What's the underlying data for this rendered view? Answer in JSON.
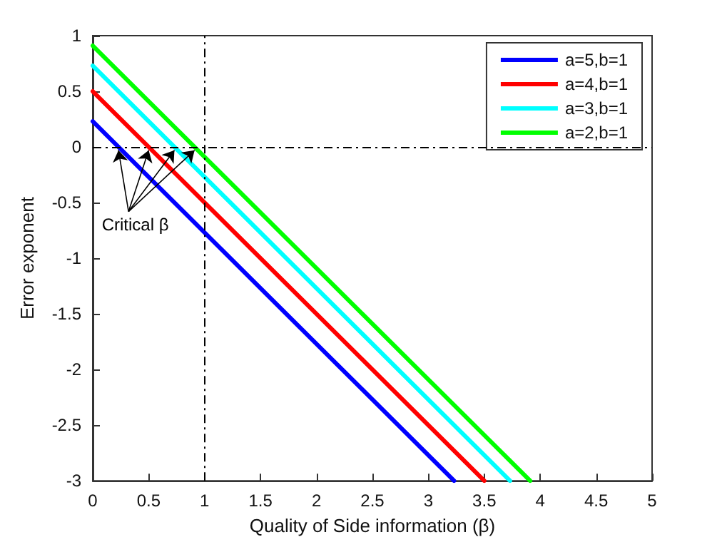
{
  "chart_data": {
    "type": "line",
    "xlabel": "Quality of Side information (β)",
    "ylabel": "Error exponent",
    "series": [
      {
        "name": "a=5,b=1",
        "color": "#0000ff",
        "x": [
          0,
          3.23
        ],
        "values": [
          0.23,
          -3
        ]
      },
      {
        "name": "a=4,b=1",
        "color": "#ff0000",
        "x": [
          0,
          3.5
        ],
        "values": [
          0.5,
          -3
        ]
      },
      {
        "name": "a=3,b=1",
        "color": "#00ffff",
        "x": [
          0,
          3.73
        ],
        "values": [
          0.73,
          -3
        ]
      },
      {
        "name": "a=2,b=1",
        "color": "#00ff00",
        "x": [
          0,
          3.91
        ],
        "values": [
          0.91,
          -3
        ]
      }
    ],
    "xlim": [
      0,
      5
    ],
    "ylim": [
      -3,
      1
    ],
    "xticks": [
      0,
      0.5,
      1,
      1.5,
      2,
      2.5,
      3,
      3.5,
      4,
      4.5,
      5
    ],
    "yticks": [
      -3,
      -2.5,
      -2,
      -1.5,
      -1,
      -0.5,
      0,
      0.5,
      1
    ],
    "ref_lines": [
      {
        "axis": "x",
        "value": 1,
        "color": "#000000",
        "line_style": "dashed"
      },
      {
        "axis": "y",
        "value": 0,
        "color": "#000000",
        "line_style": "dashed"
      }
    ],
    "annotations": [
      {
        "text": "Critical β",
        "x": 0.5,
        "y": 0
      }
    ],
    "grid": false,
    "legend": "top right",
    "marker": "none",
    "line_style": "solid"
  }
}
